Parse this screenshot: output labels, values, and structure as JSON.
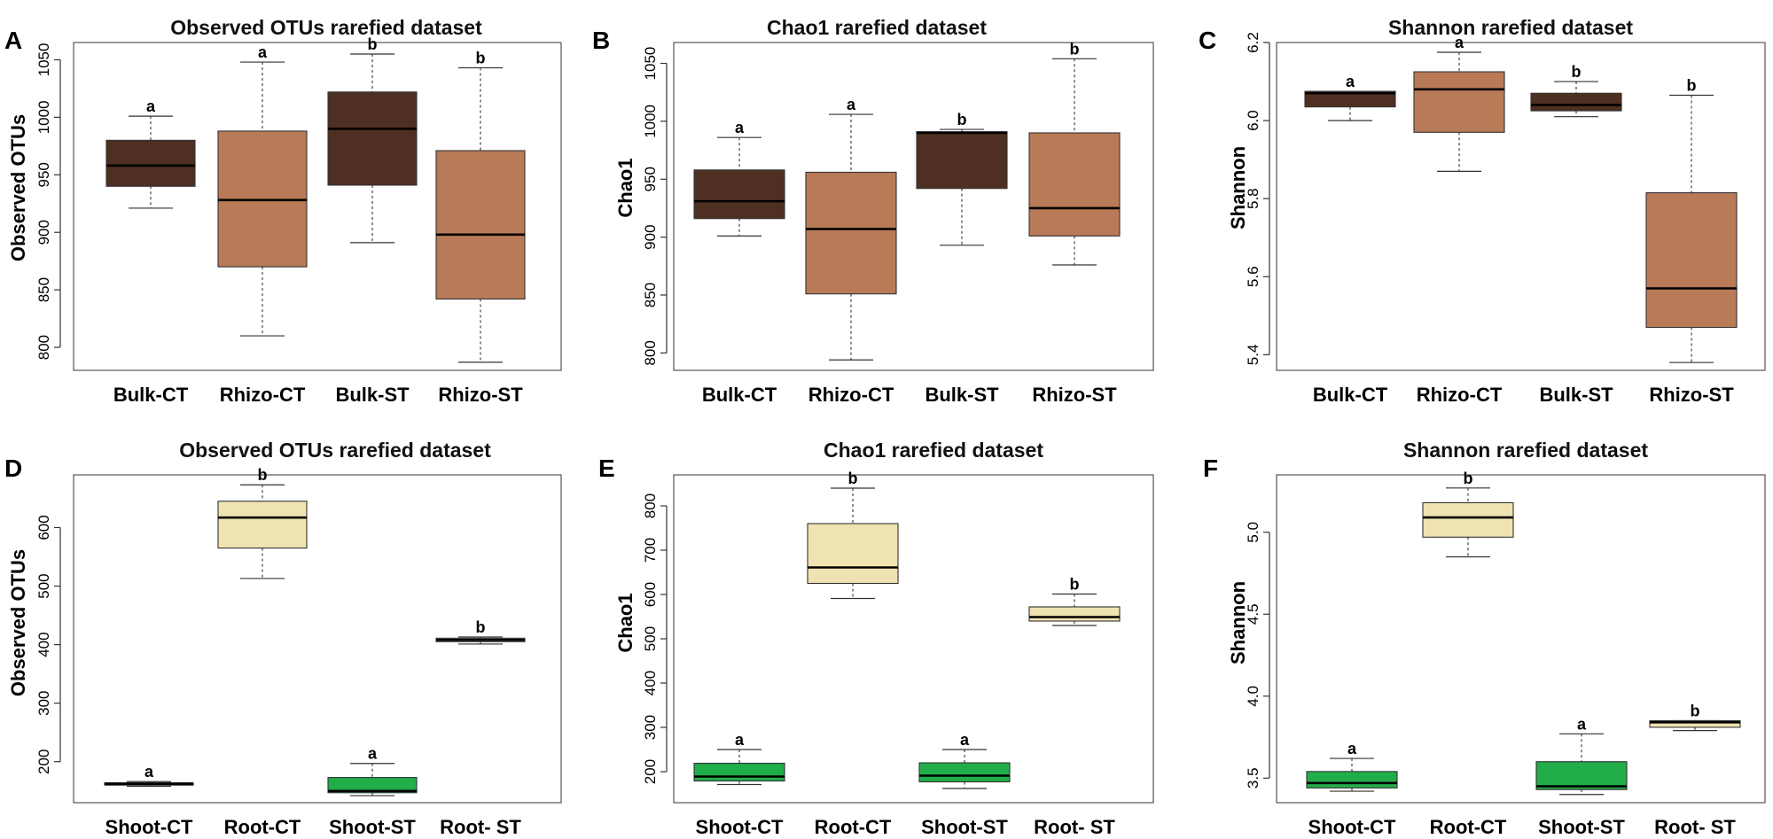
{
  "chart_data": [
    {
      "type": "box",
      "label": "A",
      "title": "Observed OTUs rarefied dataset",
      "ylabel": "Observed OTUs",
      "ylim": [
        780,
        1065
      ],
      "yticks": [
        800,
        850,
        900,
        950,
        1000,
        1050
      ],
      "categories": [
        "Bulk-CT",
        "Rhizo-CT",
        "Bulk-ST",
        "Rhizo-ST"
      ],
      "colors": [
        "#4e2f21",
        "#b97a57",
        "#4e2f21",
        "#b97a57"
      ],
      "boxes": [
        {
          "min": 921,
          "q1": 940,
          "median": 958,
          "q3": 980,
          "max": 1001
        },
        {
          "min": 810,
          "q1": 870,
          "median": 928,
          "q3": 988,
          "max": 1048
        },
        {
          "min": 891,
          "q1": 941,
          "median": 990,
          "q3": 1022,
          "max": 1055
        },
        {
          "min": 787,
          "q1": 842,
          "median": 898,
          "q3": 971,
          "max": 1043
        }
      ],
      "letters": [
        "a",
        "a",
        "b",
        "b"
      ]
    },
    {
      "type": "box",
      "label": "B",
      "title": "Chao1 rarefied dataset",
      "ylabel": "Chao1",
      "ylim": [
        785,
        1068
      ],
      "yticks": [
        800,
        850,
        900,
        950,
        1000,
        1050
      ],
      "categories": [
        "Bulk-CT",
        "Rhizo-CT",
        "Bulk-ST",
        "Rhizo-ST"
      ],
      "colors": [
        "#4e2f21",
        "#b97a57",
        "#4e2f21",
        "#b97a57"
      ],
      "boxes": [
        {
          "min": 901,
          "q1": 916,
          "median": 931,
          "q3": 958,
          "max": 986
        },
        {
          "min": 794,
          "q1": 851,
          "median": 907,
          "q3": 956,
          "max": 1006
        },
        {
          "min": 893,
          "q1": 942,
          "median": 990,
          "q3": 991,
          "max": 993
        },
        {
          "min": 876,
          "q1": 901,
          "median": 925,
          "q3": 990,
          "max": 1054
        }
      ],
      "letters": [
        "a",
        "a",
        "b",
        "b"
      ]
    },
    {
      "type": "box",
      "label": "C",
      "title": "Shannon rarefied dataset",
      "ylabel": "Shannon",
      "ylim": [
        5.36,
        6.2
      ],
      "yticks": [
        5.4,
        5.6,
        5.8,
        6.0,
        6.2
      ],
      "categories": [
        "Bulk-CT",
        "Rhizo-CT",
        "Bulk-ST",
        "Rhizo-ST"
      ],
      "colors": [
        "#4e2f21",
        "#b97a57",
        "#4e2f21",
        "#b97a57"
      ],
      "boxes": [
        {
          "min": 6.0,
          "q1": 6.035,
          "median": 6.07,
          "q3": 6.075,
          "max": 6.075
        },
        {
          "min": 5.87,
          "q1": 5.97,
          "median": 6.08,
          "q3": 6.125,
          "max": 6.175
        },
        {
          "min": 6.01,
          "q1": 6.025,
          "median": 6.04,
          "q3": 6.07,
          "max": 6.1
        },
        {
          "min": 5.38,
          "q1": 5.47,
          "median": 5.57,
          "q3": 5.815,
          "max": 6.065
        }
      ],
      "letters": [
        "a",
        "a",
        "b",
        "b"
      ]
    },
    {
      "type": "box",
      "label": "D",
      "title": "Observed OTUs rarefied dataset",
      "ylabel": "Observed OTUs",
      "ylim": [
        130,
        690
      ],
      "yticks": [
        200,
        300,
        400,
        500,
        600
      ],
      "categories": [
        "Shoot-CT",
        "Root-CT",
        "Shoot-ST",
        "Root- ST"
      ],
      "colors": [
        "#f0e3b2",
        "#f0e3b2",
        "#22ad4b",
        "#f0e3b2"
      ],
      "boxes": [
        {
          "min": 158,
          "q1": 160,
          "median": 162,
          "q3": 164,
          "max": 166
        },
        {
          "min": 513,
          "q1": 565,
          "median": 617,
          "q3": 645,
          "max": 673
        },
        {
          "min": 142,
          "q1": 147,
          "median": 150,
          "q3": 173,
          "max": 197
        },
        {
          "min": 401,
          "q1": 405,
          "median": 408,
          "q3": 411,
          "max": 413
        }
      ],
      "letters": [
        "a",
        "b",
        "a",
        "b"
      ]
    },
    {
      "type": "box",
      "label": "E",
      "title": "Chao1 rarefied dataset",
      "ylabel": "Chao1",
      "ylim": [
        130,
        870
      ],
      "yticks": [
        200,
        300,
        400,
        500,
        600,
        700,
        800
      ],
      "categories": [
        "Shoot-CT",
        "Root-CT",
        "Shoot-ST",
        "Root- ST"
      ],
      "colors": [
        "#22ad4b",
        "#f0e3b2",
        "#22ad4b",
        "#f0e3b2"
      ],
      "boxes": [
        {
          "min": 171,
          "q1": 179,
          "median": 189,
          "q3": 219,
          "max": 250
        },
        {
          "min": 591,
          "q1": 625,
          "median": 661,
          "q3": 760,
          "max": 840
        },
        {
          "min": 162,
          "q1": 177,
          "median": 191,
          "q3": 220,
          "max": 250
        },
        {
          "min": 530,
          "q1": 540,
          "median": 549,
          "q3": 572,
          "max": 601
        }
      ],
      "letters": [
        "a",
        "b",
        "a",
        "b"
      ]
    },
    {
      "type": "box",
      "label": "F",
      "title": "Shannon rarefied dataset",
      "ylabel": "Shannon",
      "ylim": [
        3.35,
        5.35
      ],
      "yticks": [
        3.5,
        4.0,
        4.5,
        5.0
      ],
      "categories": [
        "Shoot-CT",
        "Root-CT",
        "Shoot-ST",
        "Root- ST"
      ],
      "colors": [
        "#22ad4b",
        "#f0e3b2",
        "#22ad4b",
        "#f0e3b2"
      ],
      "boxes": [
        {
          "min": 3.42,
          "q1": 3.44,
          "median": 3.47,
          "q3": 3.54,
          "max": 3.62
        },
        {
          "min": 4.85,
          "q1": 4.97,
          "median": 5.09,
          "q3": 5.18,
          "max": 5.27
        },
        {
          "min": 3.4,
          "q1": 3.43,
          "median": 3.45,
          "q3": 3.6,
          "max": 3.77
        },
        {
          "min": 3.79,
          "q1": 3.81,
          "median": 3.84,
          "q3": 3.85,
          "max": 3.85
        }
      ],
      "letters": [
        "a",
        "b",
        "a",
        "b"
      ]
    }
  ]
}
